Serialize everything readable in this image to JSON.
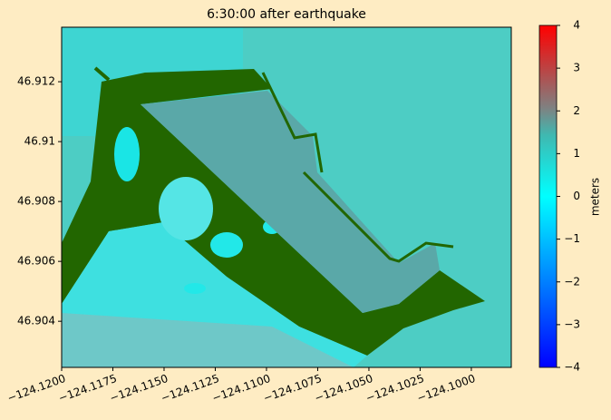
{
  "chart_data": {
    "type": "heatmap",
    "title": "6:30:00 after earthquake",
    "xlim": [
      -124.12,
      -124.09805
    ],
    "ylim": [
      46.90246,
      46.91382
    ],
    "xticks": [
      {
        "value": -124.12,
        "label": "−124.1200"
      },
      {
        "value": -124.1175,
        "label": "−124.1175"
      },
      {
        "value": -124.115,
        "label": "−124.1150"
      },
      {
        "value": -124.1125,
        "label": "−124.1125"
      },
      {
        "value": -124.11,
        "label": "−124.1100"
      },
      {
        "value": -124.1075,
        "label": "−124.1075"
      },
      {
        "value": -124.105,
        "label": "−124.1050"
      },
      {
        "value": -124.1025,
        "label": "−124.1025"
      },
      {
        "value": -124.1,
        "label": "−124.1000"
      }
    ],
    "yticks": [
      46.904,
      46.906,
      46.908,
      46.91,
      {
        "value": 46.912,
        "label": "46.912"
      }
    ],
    "colorbar": {
      "label": "meters",
      "lim": [
        -4,
        4
      ],
      "ticks": [
        {
          "value": -4,
          "label": "−4"
        },
        {
          "value": -3,
          "label": "−3"
        },
        {
          "value": -2,
          "label": "−2"
        },
        {
          "value": -1,
          "label": "−1"
        },
        0,
        1,
        2,
        3,
        4
      ]
    }
  }
}
